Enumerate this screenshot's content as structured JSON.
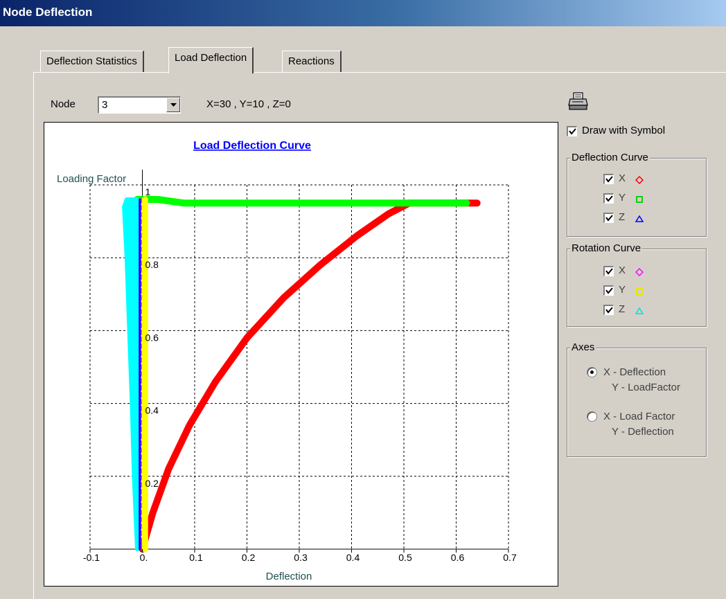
{
  "window": {
    "title": "Node Deflection"
  },
  "tabs": [
    {
      "label": "Deflection Statistics"
    },
    {
      "label": "Load Deflection"
    },
    {
      "label": "Reactions"
    }
  ],
  "node": {
    "label": "Node",
    "selected": "3",
    "coords": "X=30 , Y=10 , Z=0"
  },
  "options": {
    "draw_with_symbol": {
      "label": "Draw with Symbol",
      "checked": true
    }
  },
  "deflection_curve": {
    "title": "Deflection Curve",
    "items": [
      {
        "axis": "X",
        "checked": true,
        "color": "#ff0000",
        "symbol": "diamond-icon"
      },
      {
        "axis": "Y",
        "checked": true,
        "color": "#00cc00",
        "symbol": "square-icon"
      },
      {
        "axis": "Z",
        "checked": true,
        "color": "#0000ff",
        "symbol": "triangle-icon"
      }
    ]
  },
  "rotation_curve": {
    "title": "Rotation Curve",
    "items": [
      {
        "axis": "X",
        "checked": true,
        "color": "#ff00ff",
        "symbol": "diamond-icon"
      },
      {
        "axis": "Y",
        "checked": true,
        "color": "#ffff00",
        "symbol": "square-icon"
      },
      {
        "axis": "Z",
        "checked": true,
        "color": "#00ffff",
        "symbol": "triangle-icon"
      }
    ]
  },
  "axes": {
    "title": "Axes",
    "options": [
      {
        "line1": "X - Deflection",
        "line2": "Y - LoadFactor",
        "selected": true
      },
      {
        "line1": "X - Load Factor",
        "line2": "Y - Deflection",
        "selected": false
      }
    ]
  },
  "chart_data": {
    "type": "line",
    "title": "Load Deflection Curve",
    "xlabel": "Deflection",
    "ylabel": "Loading Factor",
    "xlim": [
      -0.1,
      0.7
    ],
    "ylim": [
      0,
      1.0
    ],
    "x_ticks": [
      "-0.1",
      "0.",
      "0.1",
      "0.2",
      "0.3",
      "0.4",
      "0.5",
      "0.6",
      "0.7"
    ],
    "y_ticks": [
      "0.2",
      "0.4",
      "0.6",
      "0.8",
      "1"
    ],
    "grid": true,
    "series": [
      {
        "color": "#ff0000",
        "points": [
          [
            0,
            0
          ],
          [
            0.02,
            0.1
          ],
          [
            0.05,
            0.22
          ],
          [
            0.09,
            0.34
          ],
          [
            0.14,
            0.46
          ],
          [
            0.2,
            0.58
          ],
          [
            0.27,
            0.69
          ],
          [
            0.34,
            0.78
          ],
          [
            0.41,
            0.86
          ],
          [
            0.47,
            0.92
          ],
          [
            0.51,
            0.95
          ],
          [
            0.56,
            0.95
          ],
          [
            0.64,
            0.95
          ]
        ]
      },
      {
        "color": "#00ff00",
        "points": [
          [
            -0.01,
            0.96
          ],
          [
            0.03,
            0.96
          ],
          [
            0.08,
            0.95
          ],
          [
            0.3,
            0.95
          ],
          [
            0.5,
            0.95
          ],
          [
            0.62,
            0.95
          ]
        ]
      },
      {
        "color": "#00ffff",
        "points": [
          [
            -0.01,
            0
          ],
          [
            -0.016,
            0.2
          ],
          [
            -0.02,
            0.4
          ],
          [
            -0.025,
            0.6
          ],
          [
            -0.03,
            0.8
          ],
          [
            -0.035,
            0.94
          ],
          [
            -0.03,
            0.96
          ],
          [
            -0.01,
            0.96
          ]
        ]
      },
      {
        "color": "#ffff00",
        "points": [
          [
            0.005,
            0
          ],
          [
            0.005,
            0.96
          ]
        ]
      },
      {
        "color": "#ff00ff",
        "points": [
          [
            -0.003,
            0
          ],
          [
            -0.003,
            0.96
          ]
        ]
      },
      {
        "color": "#0000ff",
        "points": [
          [
            -0.005,
            0
          ],
          [
            -0.005,
            0.96
          ]
        ]
      }
    ]
  }
}
